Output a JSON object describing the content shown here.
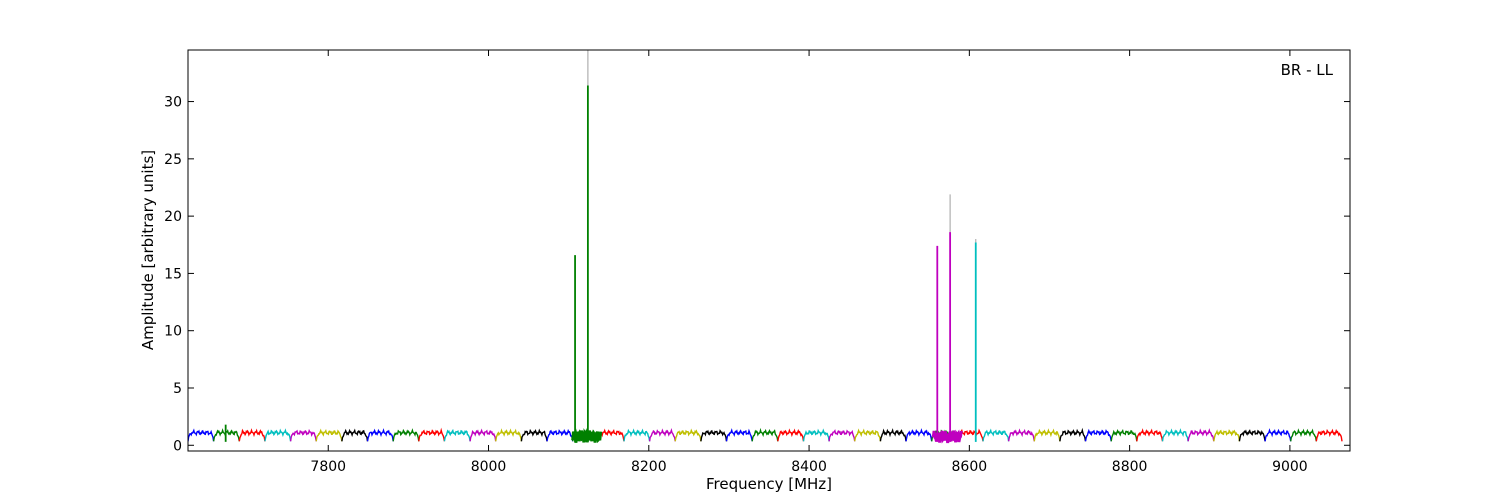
{
  "chart_data": {
    "type": "line",
    "title": "",
    "annotation": "BR - LL",
    "xlabel": "Frequency [MHz]",
    "ylabel": "Amplitude [arbitrary units]",
    "xlim": [
      7625,
      9075
    ],
    "ylim": [
      -0.5,
      34.5
    ],
    "x_ticks": [
      7800,
      8000,
      8200,
      8400,
      8600,
      8800,
      9000
    ],
    "y_ticks": [
      0,
      5,
      10,
      15,
      20,
      25,
      30
    ],
    "grid": false,
    "channel_width_mhz": 32,
    "channel_start_mhz": 7625,
    "channel_count": 45,
    "channel_baseline": 1.1,
    "color_cycle": [
      "#0000ff",
      "#008000",
      "#ff0000",
      "#00bfbf",
      "#bf00bf",
      "#bfbf00",
      "#000000"
    ],
    "spikes": [
      {
        "x": 7672,
        "y": 1.8,
        "color": "#008000"
      },
      {
        "x": 8108,
        "y": 16.6,
        "color": "#008000"
      },
      {
        "x": 8124,
        "y": 34.5,
        "color": "#b0b0b0"
      },
      {
        "x": 8124,
        "y": 31.4,
        "color": "#008000"
      },
      {
        "x": 8560,
        "y": 17.4,
        "color": "#bf00bf"
      },
      {
        "x": 8576,
        "y": 21.9,
        "color": "#b0b0b0"
      },
      {
        "x": 8576,
        "y": 18.6,
        "color": "#bf00bf"
      },
      {
        "x": 8608,
        "y": 18.0,
        "color": "#b0b0b0"
      },
      {
        "x": 8608,
        "y": 17.7,
        "color": "#00bfbf"
      }
    ]
  }
}
